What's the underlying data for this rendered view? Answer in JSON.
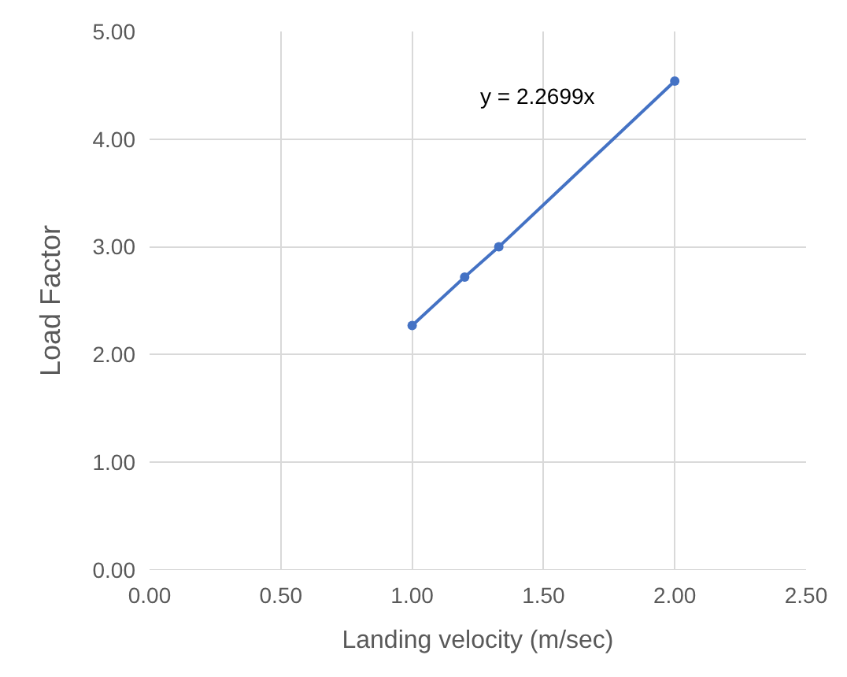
{
  "chart_data": {
    "type": "line",
    "xlabel": "Landing velocity (m/sec)",
    "ylabel": "Load Factor",
    "x": [
      1.0,
      1.2,
      1.33,
      2.0
    ],
    "series": [
      {
        "color": "#4472c4",
        "values": [
          2.27,
          2.72,
          3.0,
          4.54
        ]
      }
    ],
    "xlim": [
      0,
      2.5
    ],
    "xticks": [
      {
        "value": 0,
        "label": "0.00"
      },
      {
        "value": 0.5,
        "label": "0.50"
      },
      {
        "value": 1,
        "label": "1.00"
      },
      {
        "value": 1.5,
        "label": "1.50"
      },
      {
        "value": 2,
        "label": "2.00"
      },
      {
        "value": 2.5,
        "label": "2.50"
      }
    ],
    "ylim": [
      0,
      5
    ],
    "yticks": [
      {
        "value": 0,
        "label": "0.00"
      },
      {
        "value": 1,
        "label": "1.00"
      },
      {
        "value": 2,
        "label": "2.00"
      },
      {
        "value": 3,
        "label": "3.00"
      },
      {
        "value": 4,
        "label": "4.00"
      },
      {
        "value": 5,
        "label": "5.00"
      }
    ],
    "grid": true,
    "marker": "circle",
    "line_style": "solid",
    "annotations": [
      "y = 2.2699x"
    ]
  }
}
